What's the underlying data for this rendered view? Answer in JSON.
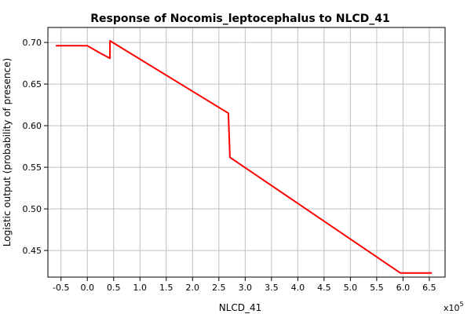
{
  "chart_data": {
    "type": "line",
    "title": "Response of Nocomis_leptocephalus to NLCD_41",
    "xlabel": "NLCD_41",
    "ylabel": "Logistic output (probability of presence)",
    "x_multiplier_base": "x10",
    "x_multiplier_exp": "5",
    "xlim": [
      -0.75,
      6.8
    ],
    "ylim": [
      0.418,
      0.718
    ],
    "x_ticks": [
      -0.5,
      0.0,
      0.5,
      1.0,
      1.5,
      2.0,
      2.5,
      3.0,
      3.5,
      4.0,
      4.5,
      5.0,
      5.5,
      6.0,
      6.5
    ],
    "x_tick_labels": [
      "-0.5",
      "0.0",
      "0.5",
      "1.0",
      "1.5",
      "2.0",
      "2.5",
      "3.0",
      "3.5",
      "4.0",
      "4.5",
      "5.0",
      "5.5",
      "6.0",
      "6.5"
    ],
    "y_ticks": [
      0.45,
      0.5,
      0.55,
      0.6,
      0.65,
      0.7
    ],
    "y_tick_labels": [
      "0.45",
      "0.50",
      "0.55",
      "0.60",
      "0.65",
      "0.70"
    ],
    "grid": true,
    "series": [
      {
        "color": "#ff0000",
        "x": [
          -0.6,
          0.0,
          0.22,
          0.43,
          0.43,
          2.68,
          2.68,
          2.71,
          5.95,
          6.55
        ],
        "y": [
          0.696,
          0.696,
          0.688,
          0.681,
          0.702,
          0.615,
          0.615,
          0.562,
          0.423,
          0.423
        ]
      }
    ]
  }
}
